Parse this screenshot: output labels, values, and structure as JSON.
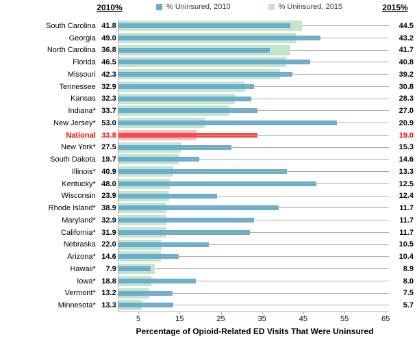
{
  "header": {
    "left_label": "2010%",
    "right_label": "2015%"
  },
  "legend": [
    {
      "label": "% Uninsured, 2010",
      "swatch": "blue-square-icon"
    },
    {
      "label": "% Uninsured, 2015",
      "swatch": "green-square-icon"
    }
  ],
  "colors": {
    "blue": "#68AECF",
    "green": "#C7E3C9",
    "red": "#FB4A4A",
    "pink": "#F9C2C2",
    "natred": "#FF0000",
    "leader": "#A8A8A8",
    "axis": "#ABABAB"
  },
  "chart_data": {
    "type": "bar",
    "orientation": "horizontal",
    "title": "",
    "xlabel": "Percentage of Opioid-Related ED Visits That Were Uninsured",
    "ylabel": "",
    "xlim": [
      0,
      65
    ],
    "x_ticks": [
      5,
      15,
      25,
      35,
      45,
      55,
      65
    ],
    "grid": false,
    "legend_position": "top-center",
    "left_value_column_header": "2010%",
    "right_value_column_header": "2015%",
    "highlight_category": "National",
    "categories": [
      "South Carolina",
      "Georgia",
      "North Carolina",
      "Florida",
      "Missouri",
      "Tennessee",
      "Kansas",
      "Indiana*",
      "New Jersey*",
      "National",
      "New York*",
      "South Dakota",
      "Illinois*",
      "Kentucky*",
      "Wisconsin",
      "Rhode Island*",
      "Maryland*",
      "California*",
      "Nebraska",
      "Arizona*",
      "Hawaii*",
      "Iowa*",
      "Vermont*",
      "Minnesota*"
    ],
    "series": [
      {
        "name": "% Uninsured, 2010",
        "values": [
          41.8,
          49.0,
          36.8,
          46.5,
          42.3,
          32.9,
          32.3,
          33.7,
          53.0,
          33.8,
          27.5,
          19.7,
          40.9,
          48.0,
          23.9,
          38.9,
          32.9,
          31.9,
          22.0,
          14.6,
          7.9,
          18.8,
          13.2,
          13.3
        ]
      },
      {
        "name": "% Uninsured, 2015",
        "values": [
          44.5,
          43.2,
          41.7,
          40.8,
          39.2,
          30.8,
          28.3,
          27.0,
          20.9,
          19.0,
          15.3,
          14.6,
          13.3,
          12.5,
          12.4,
          11.7,
          11.7,
          11.7,
          10.5,
          10.4,
          8.9,
          8.0,
          7.5,
          5.7
        ]
      }
    ]
  }
}
